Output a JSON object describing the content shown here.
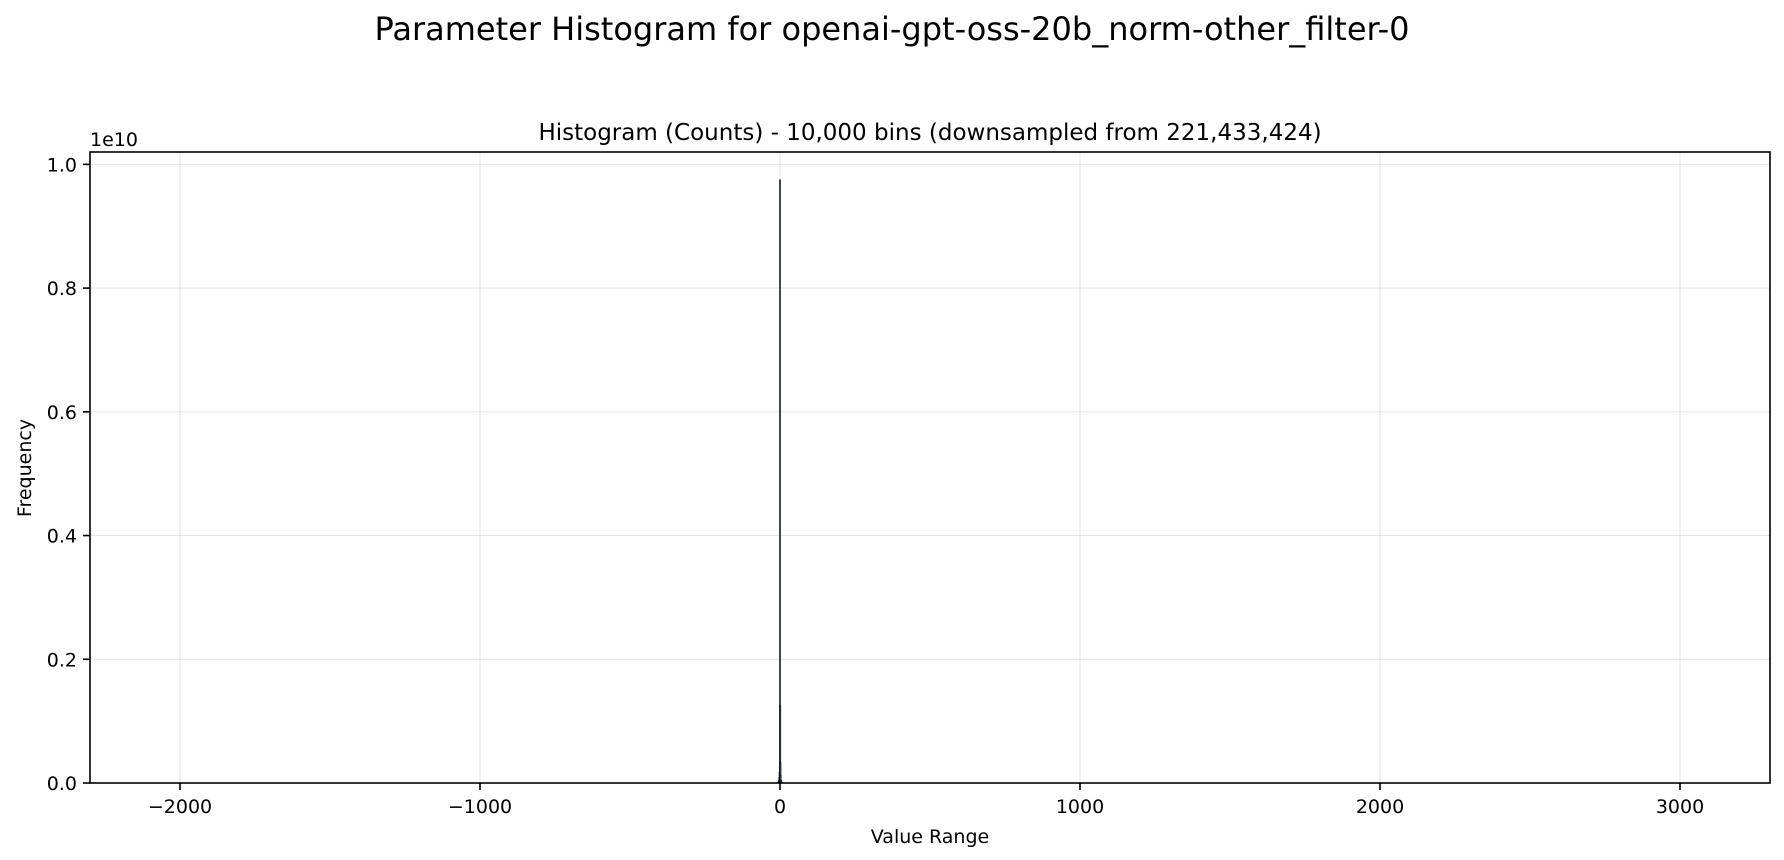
{
  "chart_data": {
    "type": "bar",
    "suptitle": "Parameter Histogram for openai-gpt-oss-20b_norm-other_filter-0",
    "title": "Histogram (Counts) - 10,000 bins (downsampled from 221,433,424)",
    "xlabel": "Value Range",
    "ylabel": "Frequency",
    "y_offset_label": "1e10",
    "xlim": [
      -2300,
      3300
    ],
    "ylim": [
      0,
      10200000000
    ],
    "x_ticks": [
      -2000,
      -1000,
      0,
      1000,
      2000,
      3000
    ],
    "x_tick_labels": [
      "−2000",
      "−1000",
      "0",
      "1000",
      "2000",
      "3000"
    ],
    "y_ticks": [
      0,
      2000000000,
      4000000000,
      6000000000,
      8000000000,
      10000000000
    ],
    "y_tick_labels": [
      "0.0",
      "0.2",
      "0.4",
      "0.6",
      "0.8",
      "1.0"
    ],
    "grid": true,
    "bar_color": "#1f3a5a",
    "edge_color": "#000000",
    "bins": [
      {
        "x": -6,
        "value": 15000000
      },
      {
        "x": -4,
        "value": 40000000
      },
      {
        "x": -2,
        "value": 90000000
      },
      {
        "x": -1,
        "value": 180000000
      },
      {
        "x": 0,
        "value": 9750000000
      },
      {
        "x": 0.5,
        "value": 1250000000
      },
      {
        "x": 1,
        "value": 330000000
      },
      {
        "x": 2,
        "value": 120000000
      },
      {
        "x": 4,
        "value": 45000000
      },
      {
        "x": 6,
        "value": 15000000
      }
    ]
  }
}
